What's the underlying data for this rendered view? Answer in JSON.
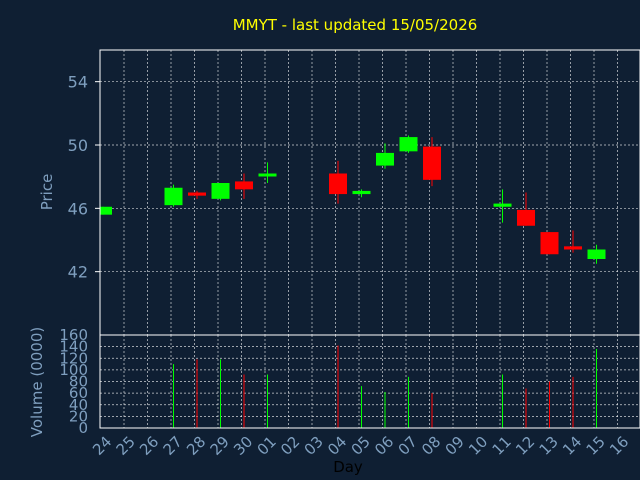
{
  "chart_data": {
    "type": "candlestick",
    "title": "MMYT - last updated 15/05/2026",
    "xlabel": "Day",
    "x_ticks": [
      "24",
      "25",
      "26",
      "27",
      "28",
      "29",
      "30",
      "01",
      "02",
      "03",
      "04",
      "05",
      "06",
      "07",
      "08",
      "09",
      "10",
      "11",
      "12",
      "13",
      "14",
      "15",
      "16"
    ],
    "price": {
      "ylabel": "Price",
      "ylim": [
        38,
        56
      ],
      "yticks": [
        42,
        46,
        50,
        54
      ],
      "grid": true,
      "candles": [
        {
          "day": "24",
          "open": 45.6,
          "high": 46.1,
          "low": 45.6,
          "close": 46.1
        },
        {
          "day": "27",
          "open": 46.2,
          "high": 47.5,
          "low": 46.1,
          "close": 47.3
        },
        {
          "day": "28",
          "open": 47.0,
          "high": 47.1,
          "low": 46.6,
          "close": 46.8
        },
        {
          "day": "29",
          "open": 46.6,
          "high": 47.6,
          "low": 46.5,
          "close": 47.6
        },
        {
          "day": "30",
          "open": 47.7,
          "high": 48.2,
          "low": 46.6,
          "close": 47.2
        },
        {
          "day": "01",
          "open": 48.1,
          "high": 48.9,
          "low": 47.6,
          "close": 48.2
        },
        {
          "day": "04",
          "open": 48.2,
          "high": 49.0,
          "low": 46.3,
          "close": 46.9
        },
        {
          "day": "05",
          "open": 46.9,
          "high": 47.2,
          "low": 46.7,
          "close": 47.1
        },
        {
          "day": "06",
          "open": 48.7,
          "high": 50.1,
          "low": 48.5,
          "close": 49.5
        },
        {
          "day": "07",
          "open": 49.6,
          "high": 50.6,
          "low": 49.5,
          "close": 50.5
        },
        {
          "day": "08",
          "open": 49.9,
          "high": 50.5,
          "low": 47.4,
          "close": 47.8
        },
        {
          "day": "11",
          "open": 46.1,
          "high": 47.2,
          "low": 45.1,
          "close": 46.3
        },
        {
          "day": "12",
          "open": 45.9,
          "high": 47.0,
          "low": 44.9,
          "close": 44.9
        },
        {
          "day": "13",
          "open": 44.5,
          "high": 44.5,
          "low": 43.1,
          "close": 43.1
        },
        {
          "day": "14",
          "open": 43.6,
          "high": 44.6,
          "low": 43.2,
          "close": 43.4
        },
        {
          "day": "15",
          "open": 42.8,
          "high": 43.7,
          "low": 42.5,
          "close": 43.4
        }
      ]
    },
    "volume": {
      "ylabel": "Volume (0000)",
      "ylim": [
        0,
        160
      ],
      "yticks": [
        0,
        20,
        40,
        60,
        80,
        100,
        120,
        140,
        160
      ],
      "bars": [
        {
          "day": "27",
          "value": 110,
          "color": "#00ff00"
        },
        {
          "day": "28",
          "value": 118,
          "color": "#ff0000"
        },
        {
          "day": "29",
          "value": 118,
          "color": "#00ff00"
        },
        {
          "day": "30",
          "value": 92,
          "color": "#ff0000"
        },
        {
          "day": "01",
          "value": 92,
          "color": "#00ff00"
        },
        {
          "day": "04",
          "value": 142,
          "color": "#ff0000"
        },
        {
          "day": "05",
          "value": 72,
          "color": "#00ff00"
        },
        {
          "day": "06",
          "value": 62,
          "color": "#00ff00"
        },
        {
          "day": "07",
          "value": 88,
          "color": "#00ff00"
        },
        {
          "day": "08",
          "value": 60,
          "color": "#ff0000"
        },
        {
          "day": "11",
          "value": 92,
          "color": "#00ff00"
        },
        {
          "day": "12",
          "value": 68,
          "color": "#ff0000"
        },
        {
          "day": "13",
          "value": 80,
          "color": "#ff0000"
        },
        {
          "day": "14",
          "value": 88,
          "color": "#ff0000"
        },
        {
          "day": "15",
          "value": 136,
          "color": "#00ff00"
        }
      ]
    },
    "colors": {
      "background": "#0f1f33",
      "axis": "#ffffff",
      "grid": "#ffffff",
      "text": "#7f9fbf",
      "title": "#ffff00",
      "up": "#00ff00",
      "down": "#ff0000"
    }
  }
}
